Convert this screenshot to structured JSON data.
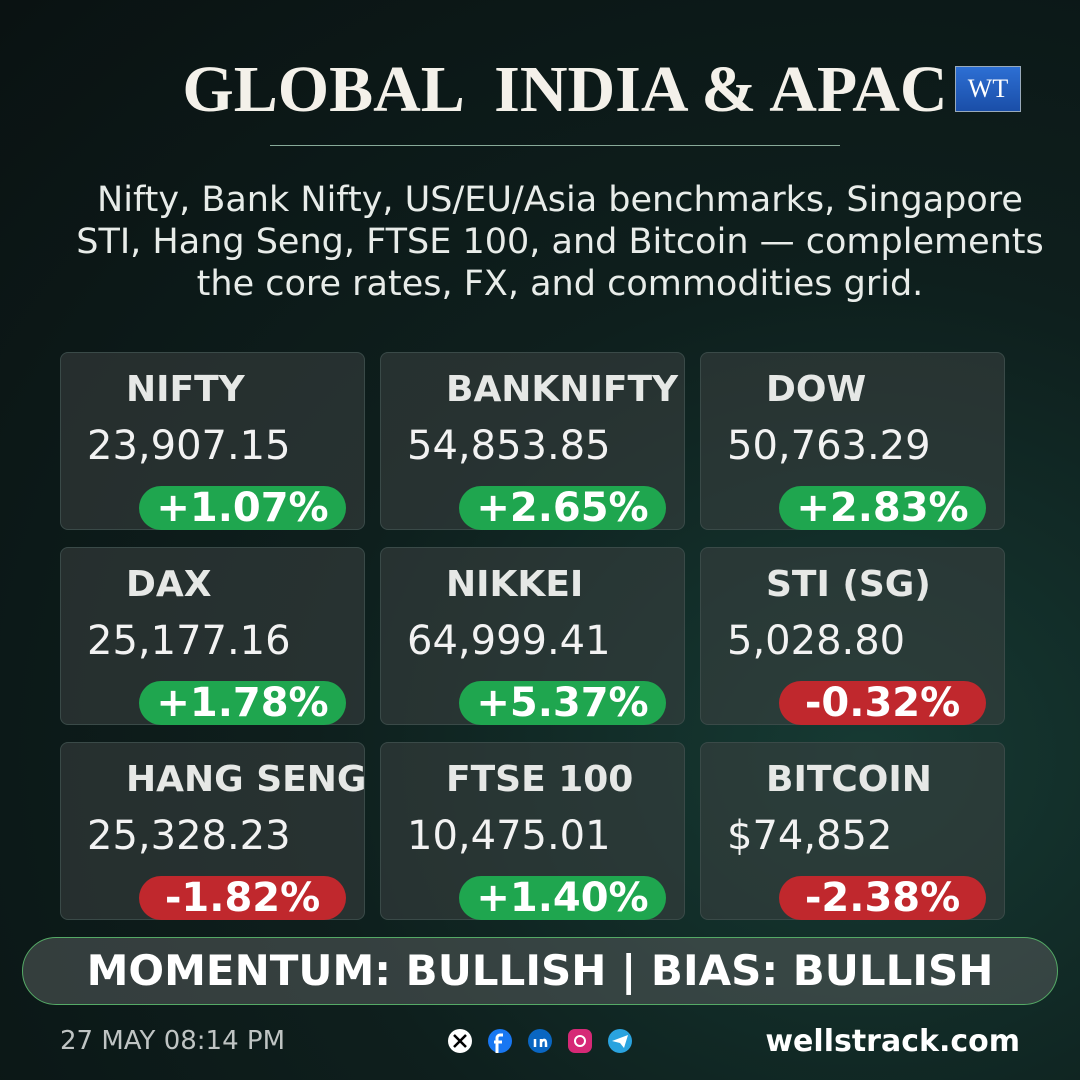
{
  "header": {
    "title": "GLOBAL  INDIA & APAC",
    "logo": "WT"
  },
  "subtitle": {
    "lines": [
      "Nifty, Bank Nifty, US/EU/Asia benchmarks, Singapore",
      "STI, Hang Seng, FTSE 100, and Bitcoin — complements",
      "the core rates, FX, and commodities grid."
    ]
  },
  "cards": [
    {
      "name": "NIFTY",
      "value": "23,907.15",
      "change": "+1.07%",
      "color": "#1fa64f"
    },
    {
      "name": "BANKNIFTY",
      "value": "54,853.85",
      "change": "+2.65%",
      "color": "#1fa64f"
    },
    {
      "name": "DOW",
      "value": "50,763.29",
      "change": "+2.83%",
      "color": "#1fa64f"
    },
    {
      "name": "DAX",
      "value": "25,177.16",
      "change": "+1.78%",
      "color": "#1fa64f"
    },
    {
      "name": "NIKKEI",
      "value": "64,999.41",
      "change": "+5.37%",
      "color": "#1fa64f"
    },
    {
      "name": "STI (SG)",
      "value": "5,028.80",
      "change": "-0.32%",
      "color": "#c0282d"
    },
    {
      "name": "HANG SENG",
      "value": "25,328.23",
      "change": "-1.82%",
      "color": "#c0282d"
    },
    {
      "name": "FTSE 100",
      "value": "10,475.01",
      "change": "+1.40%",
      "color": "#1fa64f"
    },
    {
      "name": "BITCOIN",
      "value": "$74,852",
      "change": "-2.38%",
      "color": "#c0282d"
    }
  ],
  "banner": "MOMENTUM: BULLISH | BIAS: BULLISH",
  "footer": {
    "date": "27 MAY 08:14 PM",
    "website": "wellstrack.com"
  }
}
